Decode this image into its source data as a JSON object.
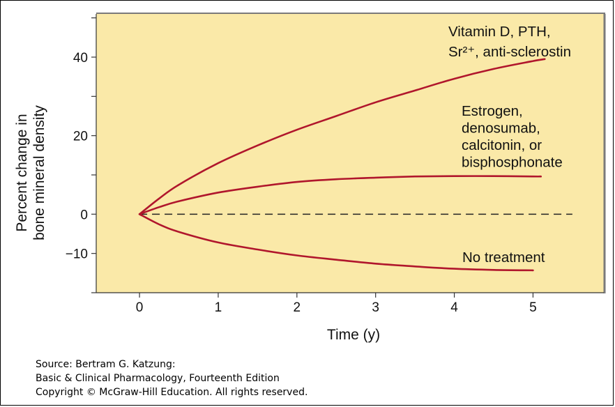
{
  "chart_data": {
    "type": "line",
    "xlabel": "Time (y)",
    "ylabel_lines": [
      "Percent change in",
      "bone mineral density"
    ],
    "xlim": [
      -0.55,
      5.9
    ],
    "ylim": [
      -20,
      51
    ],
    "x_ticks": [
      0,
      1,
      2,
      3,
      4,
      5
    ],
    "y_tick_labels": [
      {
        "value": 40,
        "text": "40"
      },
      {
        "value": 20,
        "text": "20"
      },
      {
        "value": 0,
        "text": "0"
      },
      {
        "value": -10,
        "text": "−10"
      }
    ],
    "y_minor_ticks": [
      50,
      30,
      10,
      -20
    ],
    "baseline": {
      "y": 0,
      "x_range": [
        0,
        5.5
      ],
      "style": "dashed"
    },
    "background_color": "#fae9a8",
    "line_color": "#b0162c",
    "grid": false,
    "series": [
      {
        "name_lines": [
          "Vitamin D, PTH,",
          "Sr²⁺, anti-sclerostin"
        ],
        "x": [
          0,
          0.25,
          0.5,
          1,
          1.5,
          2,
          2.5,
          3,
          3.5,
          4,
          4.5,
          5,
          5.15
        ],
        "y": [
          0,
          4,
          7.5,
          13,
          17.5,
          21.5,
          25,
          28.5,
          31.5,
          34.5,
          37,
          39,
          39.5
        ]
      },
      {
        "name_lines": [
          "Estrogen,",
          "denosumab,",
          "calcitonin, or",
          "bisphosphonate"
        ],
        "x": [
          0,
          0.25,
          0.5,
          1,
          1.5,
          2,
          2.5,
          3,
          3.5,
          4,
          4.5,
          5,
          5.1
        ],
        "y": [
          0,
          1.8,
          3.3,
          5.5,
          7,
          8.2,
          8.9,
          9.3,
          9.6,
          9.7,
          9.7,
          9.6,
          9.6
        ]
      },
      {
        "name_lines": [
          "No treatment"
        ],
        "x": [
          0,
          0.25,
          0.5,
          1,
          1.5,
          2,
          2.5,
          3,
          3.5,
          4,
          4.5,
          5
        ],
        "y": [
          0,
          -2.6,
          -4.5,
          -7.2,
          -9,
          -10.5,
          -11.6,
          -12.6,
          -13.3,
          -13.9,
          -14.2,
          -14.3
        ]
      }
    ]
  },
  "source": {
    "line1": "Source: Bertram G. Katzung:",
    "line2": "Basic & Clinical Pharmacology, Fourteenth Edition",
    "line3": "Copyright © McGraw-Hill Education. All rights reserved."
  }
}
